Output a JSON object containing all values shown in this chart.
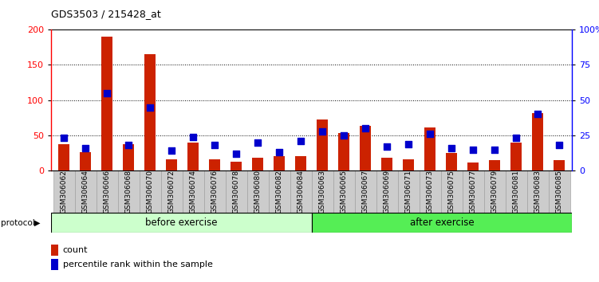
{
  "title": "GDS3503 / 215428_at",
  "categories": [
    "GSM306062",
    "GSM306064",
    "GSM306066",
    "GSM306068",
    "GSM306070",
    "GSM306072",
    "GSM306074",
    "GSM306076",
    "GSM306078",
    "GSM306080",
    "GSM306082",
    "GSM306084",
    "GSM306063",
    "GSM306065",
    "GSM306067",
    "GSM306069",
    "GSM306071",
    "GSM306073",
    "GSM306075",
    "GSM306077",
    "GSM306079",
    "GSM306081",
    "GSM306083",
    "GSM306085"
  ],
  "count_values": [
    37,
    26,
    190,
    37,
    165,
    16,
    40,
    16,
    13,
    18,
    20,
    20,
    73,
    53,
    64,
    18,
    16,
    61,
    25,
    12,
    15,
    40,
    81,
    15
  ],
  "percentile_values": [
    23,
    16,
    55,
    18,
    45,
    14,
    24,
    18,
    12,
    20,
    13,
    21,
    28,
    25,
    30,
    17,
    19,
    26,
    16,
    15,
    15,
    23,
    40,
    18
  ],
  "bar_color": "#cc2200",
  "square_color": "#0000cc",
  "left_ylim": [
    0,
    200
  ],
  "right_ylim": [
    0,
    100
  ],
  "left_yticks": [
    0,
    50,
    100,
    150,
    200
  ],
  "right_yticks": [
    0,
    25,
    50,
    75,
    100
  ],
  "right_yticklabels": [
    "0",
    "25",
    "50",
    "75",
    "100%"
  ],
  "grid_values": [
    50,
    100,
    150
  ],
  "before_exercise_count": 12,
  "after_exercise_count": 12,
  "before_label": "before exercise",
  "after_label": "after exercise",
  "protocol_label": "protocol",
  "legend_count": "count",
  "legend_percentile": "percentile rank within the sample",
  "before_color": "#ccffcc",
  "after_color": "#55ee55",
  "background_color": "#ffffff",
  "tickbox_color": "#cccccc",
  "tickbox_edge": "#999999",
  "bar_width": 0.5,
  "square_size": 40
}
